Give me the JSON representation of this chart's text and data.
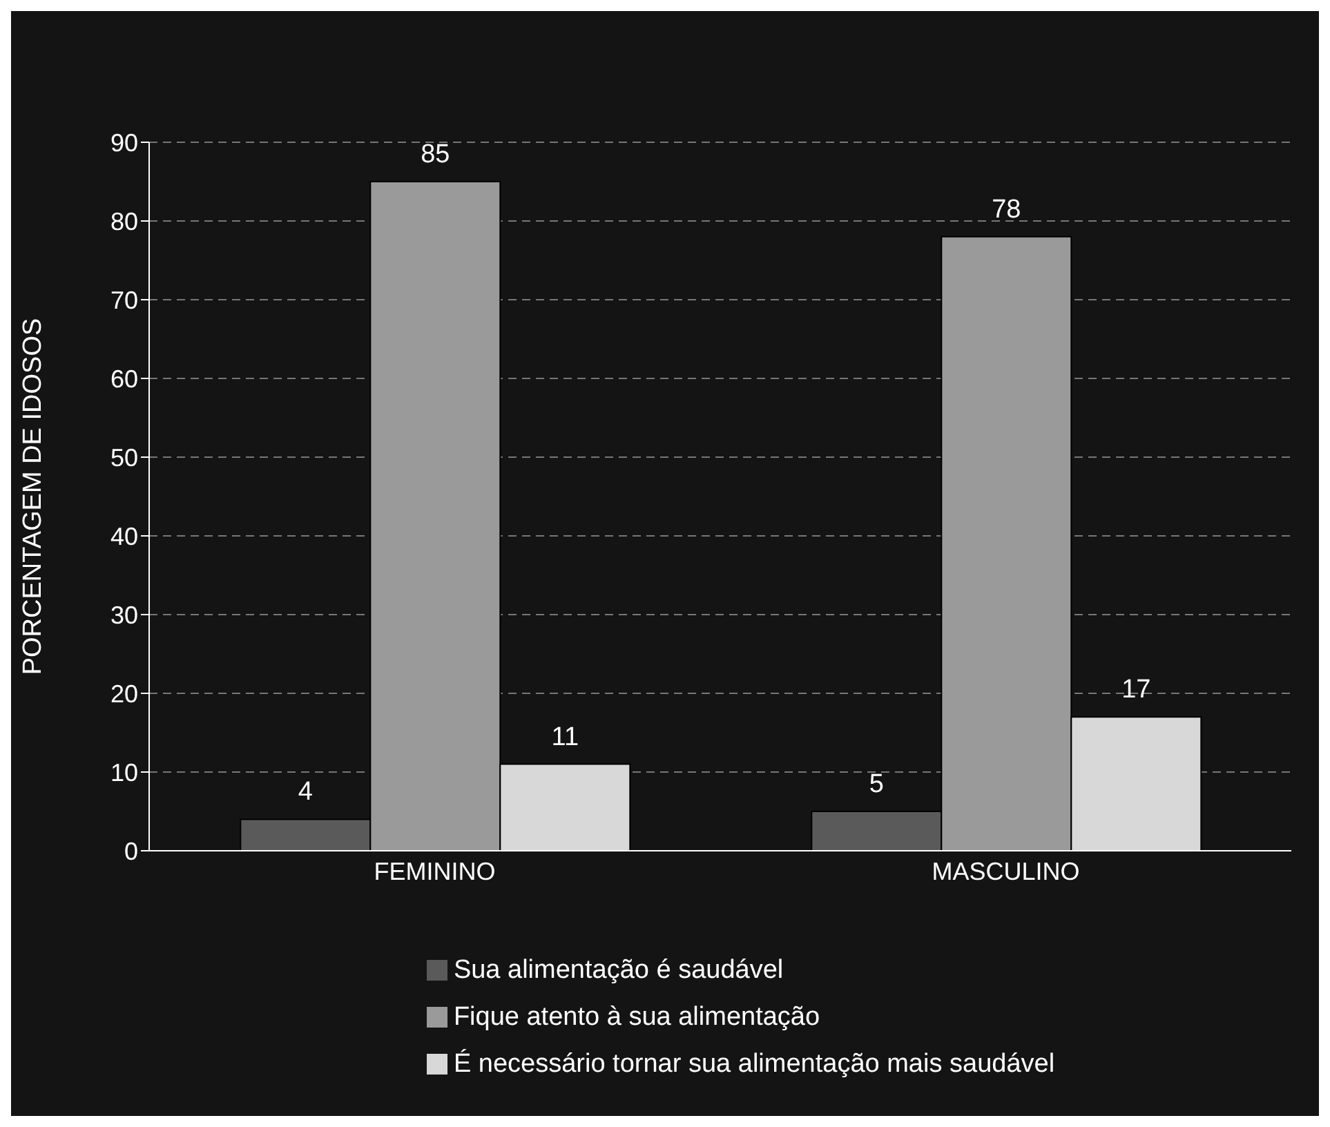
{
  "chart_data": {
    "type": "bar",
    "ylabel": "PORCENTAGEM  DE  IDOSOS",
    "categories": [
      "FEMININO",
      "MASCULINO"
    ],
    "series": [
      {
        "name": "Sua alimentação é saudável",
        "color": "#5a5a5a",
        "values": [
          4,
          5
        ]
      },
      {
        "name": "Fique atento à sua alimentação",
        "color": "#9a9a9a",
        "values": [
          85,
          78
        ]
      },
      {
        "name": "É necessário tornar sua alimentação mais saudável",
        "color": "#d8d8d8",
        "values": [
          11,
          17
        ]
      }
    ],
    "ylim": [
      0,
      90
    ],
    "yticks": [
      0,
      10,
      20,
      30,
      40,
      50,
      60,
      70,
      80,
      90
    ],
    "grid": "y",
    "legend": "bottom",
    "data_labels": true
  }
}
